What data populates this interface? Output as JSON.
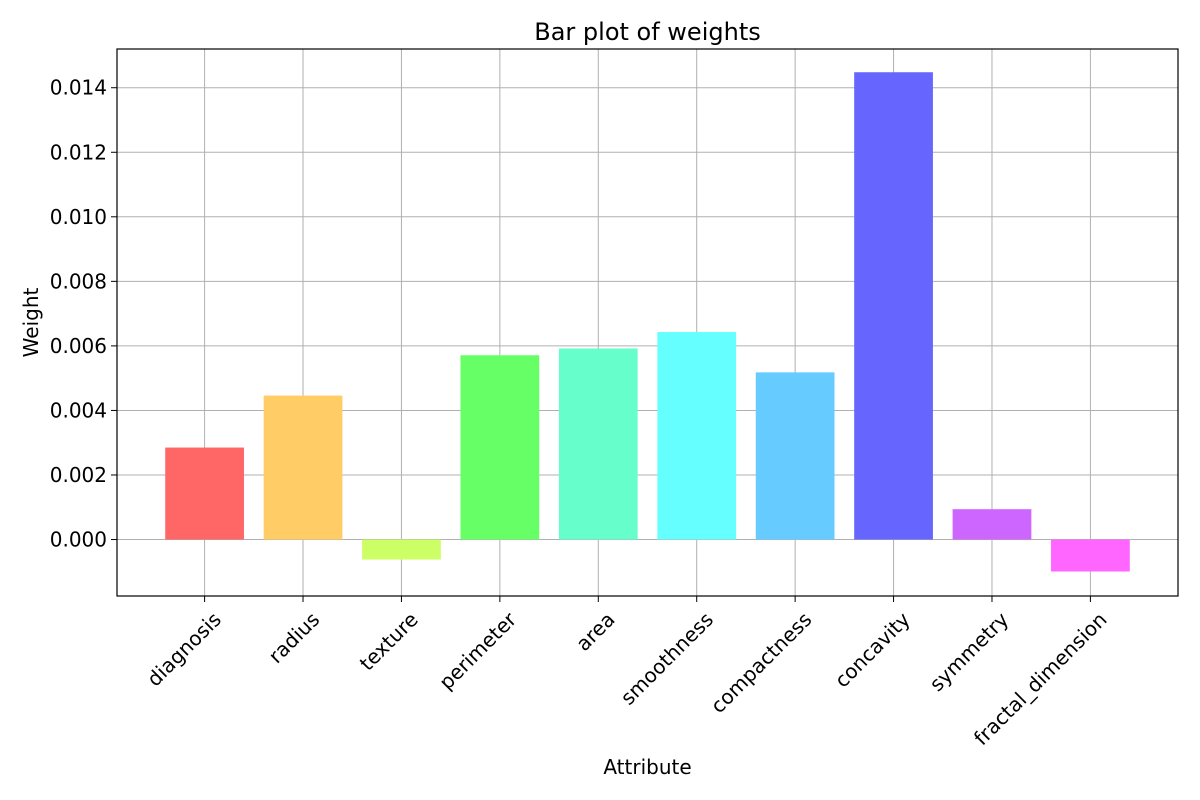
{
  "chart_data": {
    "type": "bar",
    "title": "Bar plot of weights",
    "xlabel": "Attribute",
    "ylabel": "Weight",
    "categories": [
      "diagnosis",
      "radius",
      "texture",
      "perimeter",
      "area",
      "smoothness",
      "compactness",
      "concavity",
      "symmetry",
      "fractal_dimension"
    ],
    "values": [
      0.00285,
      0.00446,
      -0.00062,
      0.00571,
      0.00592,
      0.00643,
      0.00518,
      0.01448,
      0.00094,
      -0.00099
    ],
    "colors": [
      "#ff6666",
      "#ffcc66",
      "#ccff66",
      "#66ff66",
      "#66ffcc",
      "#66ffff",
      "#66ccff",
      "#6666ff",
      "#cc66ff",
      "#ff66ff"
    ],
    "ylim": [
      -0.00175,
      0.0152
    ],
    "yticks": [
      0.0,
      0.002,
      0.004,
      0.006,
      0.008,
      0.01,
      0.012,
      0.014
    ],
    "ytick_labels": [
      "0.000",
      "0.002",
      "0.004",
      "0.006",
      "0.008",
      "0.010",
      "0.012",
      "0.014"
    ],
    "grid": true,
    "xtick_rotation_deg": 45
  }
}
